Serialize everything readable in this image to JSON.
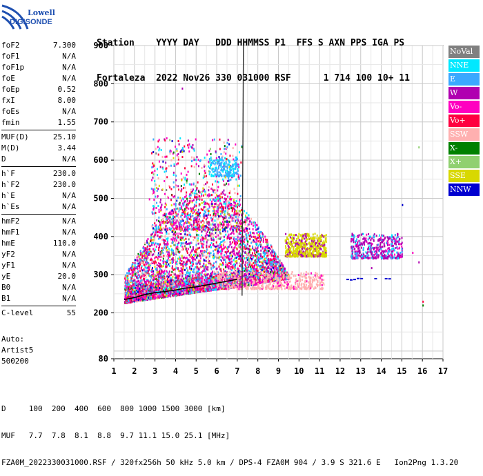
{
  "brand": {
    "line1": "Lowell",
    "line2": "DIGISONDE"
  },
  "header": {
    "row1": "Station    YYYY DAY   DDD HHMMSS P1  FFS S AXN PPS IGA PS",
    "row2": "Fortaleza  2022 Nov26 330 031000 RSF      1 714 100 10+ 11"
  },
  "params": [
    {
      "k": "foF2",
      "v": "7.300"
    },
    {
      "k": "foF1",
      "v": "N/A"
    },
    {
      "k": "foF1p",
      "v": "N/A"
    },
    {
      "k": "foE",
      "v": "N/A"
    },
    {
      "k": "foEp",
      "v": "0.52"
    },
    {
      "k": "fxI",
      "v": "8.00"
    },
    {
      "k": "foEs",
      "v": "N/A"
    },
    {
      "k": "fmin",
      "v": "1.55"
    },
    {
      "k": "MUF(D)",
      "v": "25.10"
    },
    {
      "k": "M(D)",
      "v": "3.44"
    },
    {
      "k": "D",
      "v": "N/A"
    },
    {
      "k": "h`F",
      "v": "230.0"
    },
    {
      "k": "h`F2",
      "v": "230.0"
    },
    {
      "k": "h`E",
      "v": "N/A"
    },
    {
      "k": "h`Es",
      "v": "N/A"
    },
    {
      "k": "hmF2",
      "v": "N/A"
    },
    {
      "k": "hmF1",
      "v": "N/A"
    },
    {
      "k": "hmE",
      "v": "110.0"
    },
    {
      "k": "yF2",
      "v": "N/A"
    },
    {
      "k": "yF1",
      "v": "N/A"
    },
    {
      "k": "yE",
      "v": "20.0"
    },
    {
      "k": "B0",
      "v": "N/A"
    },
    {
      "k": "B1",
      "v": "N/A"
    },
    {
      "k": "C-level",
      "v": "55"
    }
  ],
  "auto": {
    "l1": "Auto:",
    "l2": "Artist5",
    "l3": "500200"
  },
  "legend": [
    {
      "name": "NoVal",
      "color": "#808080"
    },
    {
      "name": "NNE",
      "color": "#00e8ff"
    },
    {
      "name": "E",
      "color": "#3aa8ff"
    },
    {
      "name": "W",
      "color": "#b000b0"
    },
    {
      "name": "Vo-",
      "color": "#ff00c0"
    },
    {
      "name": "Vo+",
      "color": "#ff0040"
    },
    {
      "name": "SSW",
      "color": "#ffb0b0"
    },
    {
      "name": "X-",
      "color": "#008000"
    },
    {
      "name": "X+",
      "color": "#90d070"
    },
    {
      "name": "SSE",
      "color": "#d8d800"
    },
    {
      "name": "NNW",
      "color": "#0000d0"
    }
  ],
  "footer": {
    "row1": "D     100  200  400  600  800 1000 1500 3000 [km]",
    "row2": "MUF   7.7  7.8  8.1  8.8  9.7 11.1 15.0 25.1 [MHz]",
    "row3": "FZA0M_2022330031000.RSF / 320fx256h 50 kHz 5.0 km / DPS-4 FZA0M 904 / 3.9 S 321.6 E   Ion2Png 1.3.20"
  },
  "chart_data": {
    "type": "scatter",
    "xlim": [
      1,
      17
    ],
    "ylim": [
      80,
      900
    ],
    "xticks": [
      "1",
      "2",
      "3",
      "4",
      "5",
      "6",
      "7",
      "8",
      "9",
      "10",
      "11",
      "12",
      "13",
      "14",
      "15",
      "16",
      "17"
    ],
    "yticks": [
      "80",
      "200",
      "300",
      "400",
      "500",
      "600",
      "700",
      "800",
      "900"
    ],
    "ytick_values": [
      80,
      200,
      300,
      400,
      500,
      600,
      700,
      800,
      900
    ],
    "grid": true,
    "fof2_marker_x": 7.3,
    "trace": [
      [
        1.5,
        235
      ],
      [
        2,
        240
      ],
      [
        2.5,
        248
      ],
      [
        3,
        253
      ],
      [
        3.5,
        256
      ],
      [
        4,
        260
      ],
      [
        4.5,
        265
      ],
      [
        5,
        268
      ],
      [
        5.5,
        273
      ],
      [
        6,
        278
      ],
      [
        6.5,
        283
      ],
      [
        7,
        288
      ]
    ]
  }
}
